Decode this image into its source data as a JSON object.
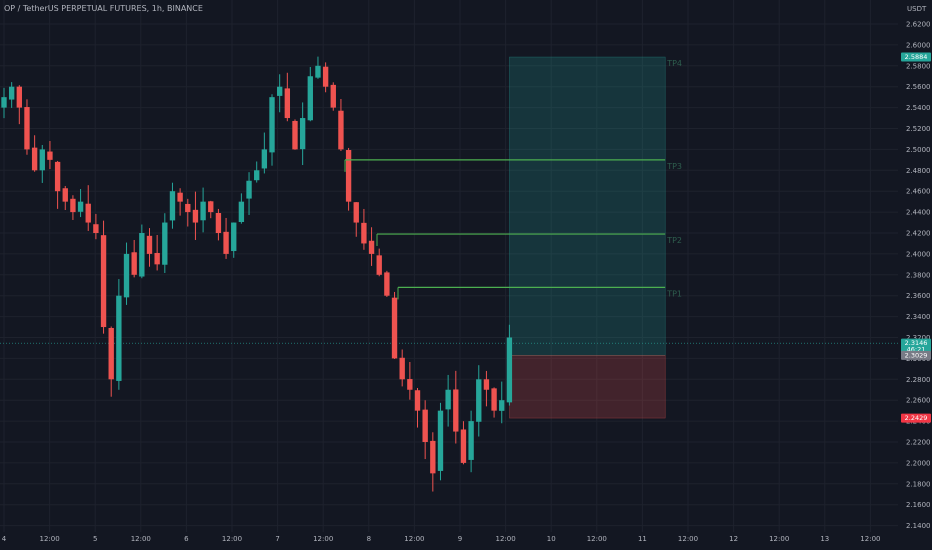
{
  "header": {
    "title": "OP / TetherUS PERPETUAL FUTURES, 1h, BINANCE"
  },
  "axis": {
    "unit": "USDT"
  },
  "colors": {
    "background": "#131722",
    "grid": "#1e222d",
    "up": "#26a69a",
    "down": "#ef5350",
    "tp_line": "#4caf50",
    "profit_zone": "rgba(38,166,154,0.22)",
    "loss_zone": "rgba(239,83,80,0.22)"
  },
  "chart_data": {
    "type": "candlestick",
    "symbol": "OP / TetherUS PERPETUAL FUTURES",
    "interval": "1h",
    "exchange": "BINANCE",
    "ylim": [
      2.14,
      2.62
    ],
    "y_ticks": [
      "2.6200",
      "2.6000",
      "2.5800",
      "2.5600",
      "2.5400",
      "2.5200",
      "2.5000",
      "2.4800",
      "2.4600",
      "2.4400",
      "2.4200",
      "2.4000",
      "2.3800",
      "2.3600",
      "2.3400",
      "2.3200",
      "2.3000",
      "2.2800",
      "2.2600",
      "2.2400",
      "2.2200",
      "2.2000",
      "2.1800",
      "2.1600",
      "2.1400"
    ],
    "x_ticks": [
      "4",
      "12:00",
      "5",
      "12:00",
      "6",
      "12:00",
      "7",
      "12:00",
      "8",
      "12:00",
      "9",
      "12:00",
      "10",
      "12:00",
      "11",
      "12:00",
      "12",
      "12:00",
      "13",
      "12:00"
    ],
    "x_tick_hours": [
      0,
      12,
      24,
      36,
      48,
      60,
      72,
      84,
      96,
      108,
      120,
      132,
      144,
      156,
      168,
      180,
      192,
      204,
      216,
      228
    ],
    "closes": [
      2.55,
      2.56,
      2.54,
      2.5,
      2.48,
      2.5,
      2.49,
      2.46,
      2.45,
      2.44,
      2.45,
      2.43,
      2.42,
      2.33,
      2.28,
      2.36,
      2.4,
      2.38,
      2.42,
      2.4,
      2.39,
      2.43,
      2.46,
      2.45,
      2.44,
      2.43,
      2.45,
      2.44,
      2.42,
      2.4,
      2.43,
      2.45,
      2.47,
      2.48,
      2.5,
      2.55,
      2.56,
      2.53,
      2.5,
      2.53,
      2.57,
      2.58,
      2.56,
      2.54,
      2.5,
      2.45,
      2.43,
      2.41,
      2.4,
      2.38,
      2.36,
      2.3,
      2.28,
      2.27,
      2.25,
      2.22,
      2.19,
      2.25,
      2.27,
      2.23,
      2.2,
      2.24,
      2.28,
      2.27,
      2.25,
      2.26,
      2.32
    ],
    "trade": {
      "entry": 2.3029,
      "stop": 2.2429,
      "take_profits": [
        {
          "label": "TP1",
          "price": 2.368
        },
        {
          "label": "TP2",
          "price": 2.419
        },
        {
          "label": "TP3",
          "price": 2.49
        },
        {
          "label": "TP4",
          "price": 2.5884
        }
      ],
      "start_hour": 133,
      "end_hour": 174
    },
    "price_badges": [
      {
        "label": "2.5884",
        "price": 2.5884,
        "color": "#26a69a"
      },
      {
        "label": "2.3146",
        "sub": "46:21",
        "price": 2.3146,
        "color": "#26a69a"
      },
      {
        "label": "2.3029",
        "price": 2.3029,
        "color": "#787b86"
      },
      {
        "label": "2.2429",
        "price": 2.2429,
        "color": "#f23645"
      }
    ],
    "grid": true,
    "legend": "none"
  }
}
